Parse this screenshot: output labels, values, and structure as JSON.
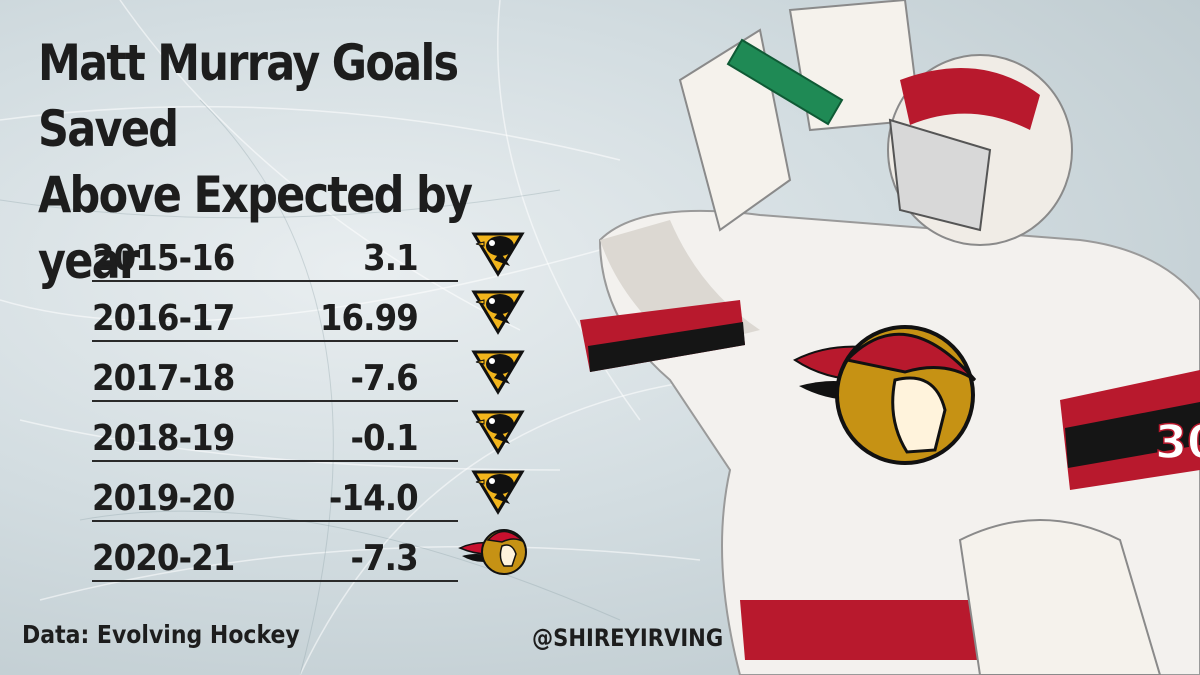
{
  "title_line1": "Matt Murray Goals Saved",
  "title_line2": "Above Expected by year",
  "rows": [
    {
      "season": "2015-16",
      "value": "3.1",
      "team_logo": "penguins-logo"
    },
    {
      "season": "2016-17",
      "value": "16.99",
      "team_logo": "penguins-logo"
    },
    {
      "season": "2017-18",
      "value": "-7.6",
      "team_logo": "penguins-logo"
    },
    {
      "season": "2018-19",
      "value": "-0.1",
      "team_logo": "penguins-logo"
    },
    {
      "season": "2019-20",
      "value": "-14.0",
      "team_logo": "penguins-logo"
    },
    {
      "season": "2020-21",
      "value": "-7.3",
      "team_logo": "senators-logo"
    }
  ],
  "source": "Data: Evolving Hockey",
  "handle": "@SHIREYIRVING",
  "photo": {
    "subject": "goalie-photo",
    "jersey_number": "30"
  },
  "colors": {
    "text": "#1d1d1d",
    "penguins_gold": "#f2b51c",
    "penguins_black": "#111111",
    "senators_red": "#c8102e",
    "senators_gold": "#c69214",
    "ice": "#d3dde1"
  }
}
